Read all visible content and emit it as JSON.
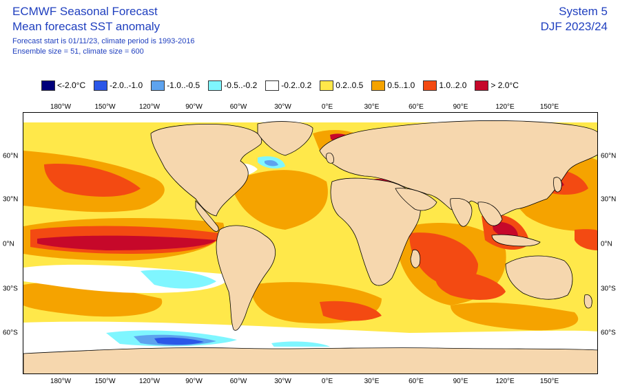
{
  "header": {
    "title": "ECMWF Seasonal Forecast",
    "subtitle": "Mean forecast SST anomaly",
    "info_line1": "Forecast start is 01/11/23, climate period is 1993-2016",
    "info_line2": "Ensemble size = 51, climate size = 600",
    "system": "System 5",
    "season": "DJF 2023/24"
  },
  "legend": [
    {
      "label": "<-2.0°C",
      "color": "#00007a"
    },
    {
      "label": "-2.0..-1.0",
      "color": "#2b57e8"
    },
    {
      "label": "-1.0..-0.5",
      "color": "#5ea3ee"
    },
    {
      "label": "-0.5..-0.2",
      "color": "#7ff6ff"
    },
    {
      "label": "-0.2..0.2",
      "color": "#ffffff"
    },
    {
      "label": "0.2..0.5",
      "color": "#ffe84a"
    },
    {
      "label": "0.5..1.0",
      "color": "#f5a300"
    },
    {
      "label": "1.0..2.0",
      "color": "#f34a12"
    },
    {
      "label": "> 2.0°C",
      "color": "#c6082a"
    }
  ],
  "map": {
    "land_color": "#f6d7ae",
    "lon_labels": [
      "180°W",
      "150°W",
      "120°W",
      "90°W",
      "60°W",
      "30°W",
      "0°E",
      "30°E",
      "60°E",
      "90°E",
      "120°E",
      "150°E"
    ],
    "lat_labels": [
      "60°N",
      "30°N",
      "0°N",
      "30°S",
      "60°S"
    ]
  }
}
